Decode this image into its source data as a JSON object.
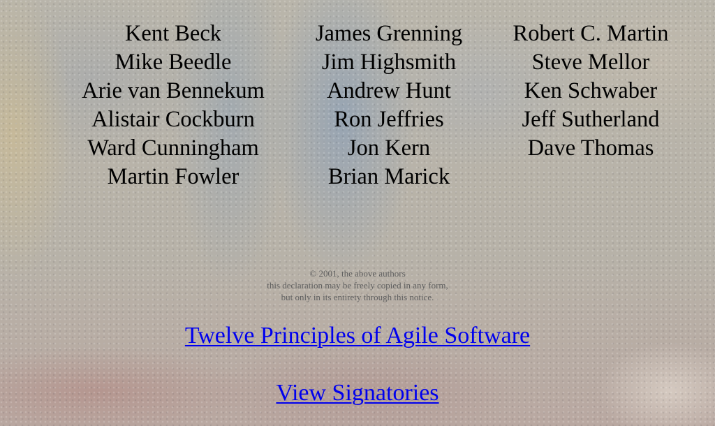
{
  "signers": {
    "column_1": [
      "Kent Beck",
      "Mike Beedle",
      "Arie van Bennekum",
      "Alistair Cockburn",
      "Ward Cunningham",
      "Martin Fowler"
    ],
    "column_2": [
      "James Grenning",
      "Jim Highsmith",
      "Andrew Hunt",
      "Ron Jeffries",
      "Jon Kern",
      "Brian Marick"
    ],
    "column_3": [
      "Robert C. Martin",
      "Steve Mellor",
      "Ken Schwaber",
      "Jeff Sutherland",
      "Dave Thomas"
    ]
  },
  "notice": {
    "line_1": "© 2001, the above authors",
    "line_2": "this declaration may be freely copied in any form,",
    "line_3": "but only in its entirety through this notice."
  },
  "links": {
    "principles": "Twelve Principles of Agile Software",
    "signatories": "View Signatories"
  },
  "colors": {
    "link": "#0000ee",
    "text": "#000000",
    "notice_text": "#5f5f5f"
  }
}
